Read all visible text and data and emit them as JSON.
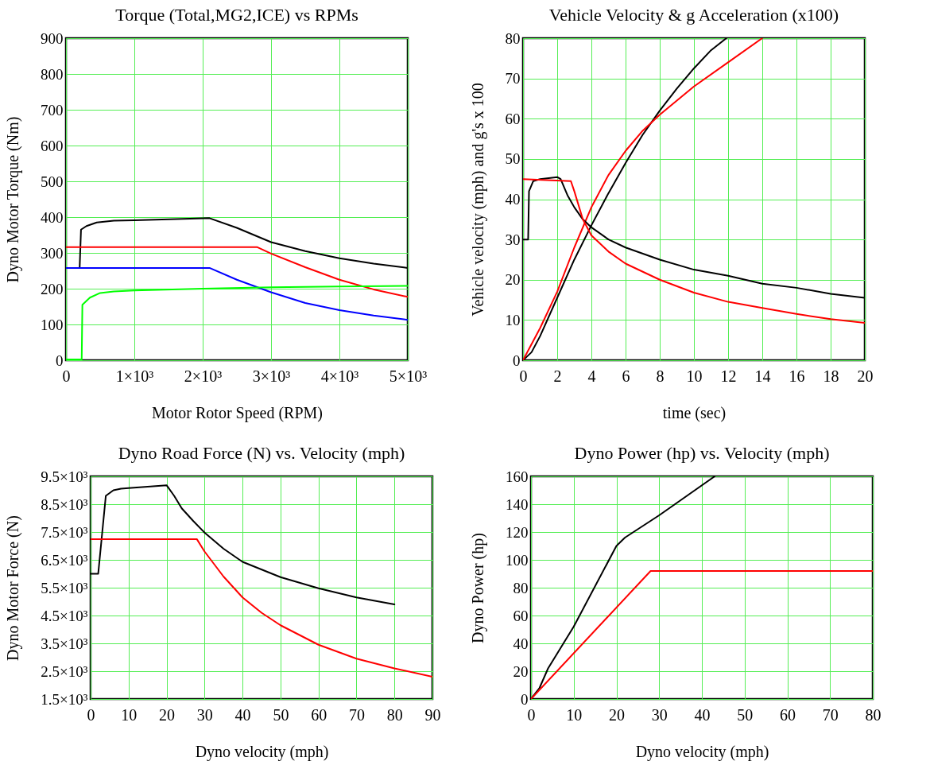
{
  "chart_data": [
    {
      "type": "line",
      "title": "Torque (Total,MG2,ICE) vs RPMs",
      "xlabel": "Motor Rotor Speed (RPM)",
      "ylabel": "Dyno Motor Torque (Nm)",
      "xlim": [
        0,
        5000
      ],
      "ylim": [
        0,
        900
      ],
      "xticks": [
        0,
        {
          "value": 1000,
          "label": "1×10³"
        },
        {
          "value": 2000,
          "label": "2×10³"
        },
        {
          "value": 3000,
          "label": "3×10³"
        },
        {
          "value": 4000,
          "label": "4×10³"
        },
        {
          "value": 5000,
          "label": "5×10³"
        }
      ],
      "yticks": [
        0,
        100,
        200,
        300,
        400,
        500,
        600,
        700,
        800,
        900
      ],
      "grid": true,
      "series": [
        {
          "color": "#000000",
          "x": [
            0,
            200,
            220,
            300,
            450,
            700,
            1000,
            2100,
            2500,
            3000,
            3500,
            4000,
            4500,
            5000
          ],
          "values": [
            258,
            258,
            365,
            375,
            385,
            390,
            391,
            397,
            370,
            330,
            305,
            285,
            270,
            258
          ]
        },
        {
          "color": "#ff0000",
          "x": [
            0,
            2800,
            3000,
            3500,
            4000,
            4500,
            5000
          ],
          "values": [
            316,
            316,
            298,
            260,
            225,
            198,
            177
          ]
        },
        {
          "color": "#0000ff",
          "x": [
            0,
            2100,
            2500,
            3000,
            3500,
            4000,
            4500,
            5000
          ],
          "values": [
            258,
            258,
            225,
            190,
            160,
            140,
            125,
            113
          ]
        },
        {
          "color": "#00ff00",
          "x": [
            0,
            230,
            240,
            350,
            500,
            700,
            1000,
            2000,
            3000,
            4000,
            5000
          ],
          "values": [
            2,
            2,
            155,
            175,
            188,
            192,
            195,
            200,
            204,
            206,
            208
          ]
        }
      ]
    },
    {
      "type": "line",
      "title": "Vehicle Velocity & g Acceleration (x100)",
      "xlabel": "time (sec)",
      "ylabel": "Vehicle velocity (mph) and g's x 100",
      "xlim": [
        0,
        20
      ],
      "ylim": [
        0,
        80
      ],
      "xticks": [
        0,
        2,
        4,
        6,
        8,
        10,
        12,
        14,
        16,
        18,
        20
      ],
      "yticks": [
        0,
        10,
        20,
        30,
        40,
        50,
        60,
        70,
        80
      ],
      "grid": true,
      "series": [
        {
          "color": "#000000",
          "x": [
            0,
            0.5,
            1,
            2,
            3,
            4,
            5,
            6,
            7,
            8,
            9,
            10,
            11,
            11.9
          ],
          "values": [
            0,
            2,
            6,
            15.5,
            25,
            33.5,
            41.5,
            49,
            56,
            62,
            67.5,
            72.5,
            77,
            80
          ]
        },
        {
          "color": "#ff0000",
          "x": [
            0,
            1,
            2,
            3,
            4,
            5,
            6,
            7,
            8,
            10,
            12,
            14
          ],
          "values": [
            0,
            8,
            17,
            28,
            38,
            46,
            52,
            57,
            61,
            68,
            74,
            80
          ]
        },
        {
          "color": "#000000",
          "x": [
            0,
            0.3,
            0.35,
            0.6,
            1,
            2,
            2.2,
            2.6,
            3,
            3.5,
            4,
            5,
            6,
            8,
            10,
            12,
            14,
            16,
            18,
            20
          ],
          "values": [
            30,
            30,
            42,
            44.5,
            45,
            45.5,
            45,
            41,
            38,
            35,
            33,
            30,
            28,
            25,
            22.5,
            21,
            19,
            18,
            16.5,
            15.5
          ]
        },
        {
          "color": "#ff0000",
          "x": [
            0,
            2.8,
            3,
            3.5,
            4,
            5,
            6,
            8,
            10,
            12,
            14,
            16,
            18,
            20
          ],
          "values": [
            45,
            44.5,
            42,
            35,
            31,
            27,
            24,
            20,
            16.8,
            14.5,
            13,
            11.5,
            10.2,
            9.3
          ]
        }
      ]
    },
    {
      "type": "line",
      "title": "Dyno Road Force (N) vs. Velocity (mph)",
      "xlabel": "Dyno velocity (mph)",
      "ylabel": "Dyno Motor Force (N)",
      "xlim": [
        0,
        90
      ],
      "ylim": [
        1500,
        9500
      ],
      "xticks": [
        0,
        10,
        20,
        30,
        40,
        50,
        60,
        70,
        80,
        90
      ],
      "yticks": [
        {
          "value": 1500,
          "label": "1.5×10³"
        },
        {
          "value": 2500,
          "label": "2.5×10³"
        },
        {
          "value": 3500,
          "label": "3.5×10³"
        },
        {
          "value": 4500,
          "label": "4.5×10³"
        },
        {
          "value": 5500,
          "label": "5.5×10³"
        },
        {
          "value": 6500,
          "label": "6.5×10³"
        },
        {
          "value": 7500,
          "label": "7.5×10³"
        },
        {
          "value": 8500,
          "label": "8.5×10³"
        },
        {
          "value": 9500,
          "label": "9.5×10³"
        }
      ],
      "grid": true,
      "series": [
        {
          "color": "#000000",
          "x": [
            0,
            2,
            4,
            6,
            8,
            10,
            20,
            22,
            24,
            27,
            30,
            35,
            40,
            50,
            60,
            70,
            80
          ],
          "values": [
            6000,
            6000,
            8800,
            9000,
            9060,
            9080,
            9180,
            8800,
            8350,
            7900,
            7480,
            6900,
            6430,
            5880,
            5480,
            5150,
            4900
          ]
        },
        {
          "color": "#ff0000",
          "x": [
            0,
            28,
            30,
            35,
            40,
            45,
            50,
            60,
            70,
            80,
            90
          ],
          "values": [
            7240,
            7240,
            6800,
            5900,
            5150,
            4600,
            4150,
            3450,
            2950,
            2600,
            2300
          ]
        }
      ]
    },
    {
      "type": "line",
      "title": "Dyno Power (hp) vs. Velocity (mph)",
      "xlabel": "Dyno velocity (mph)",
      "ylabel": "Dyno Power (hp)",
      "xlim": [
        0,
        80
      ],
      "ylim": [
        0,
        160
      ],
      "xticks": [
        0,
        10,
        20,
        30,
        40,
        50,
        60,
        70,
        80
      ],
      "yticks": [
        0,
        20,
        40,
        60,
        80,
        100,
        120,
        140,
        160
      ],
      "grid": true,
      "series": [
        {
          "color": "#000000",
          "x": [
            0,
            2,
            4,
            10,
            20,
            22,
            30,
            43
          ],
          "values": [
            0,
            8,
            22,
            52,
            110,
            116,
            132,
            160
          ]
        },
        {
          "color": "#ff0000",
          "x": [
            0,
            28,
            80
          ],
          "values": [
            0,
            92,
            92
          ]
        }
      ]
    }
  ]
}
